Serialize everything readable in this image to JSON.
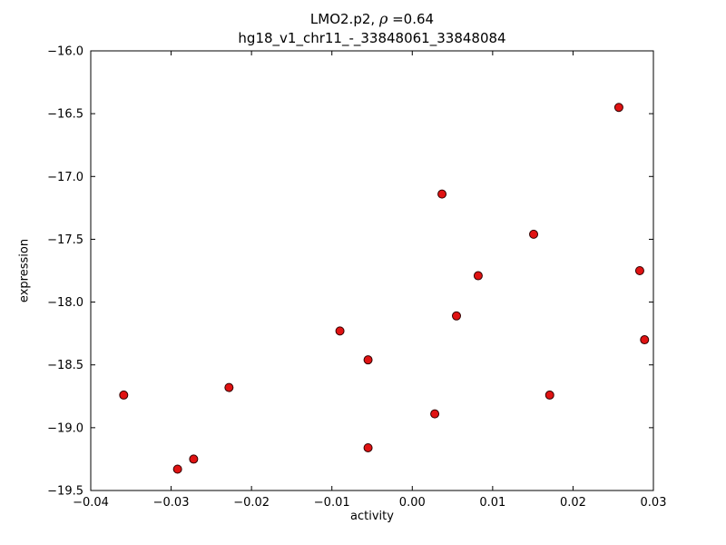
{
  "figure": {
    "title_part1": "LMO2.p2, ",
    "title_rho": "ρ",
    "title_part2": " =0.64",
    "subtitle": "hg18_v1_chr11_-_33848061_33848084",
    "xlabel": "activity",
    "ylabel": "expression"
  },
  "chart_data": {
    "type": "scatter",
    "title": "LMO2.p2, ρ =0.64",
    "subtitle": "hg18_v1_chr11_-_33848061_33848084",
    "xlabel": "activity",
    "ylabel": "expression",
    "xlim": [
      -0.04,
      0.03
    ],
    "ylim": [
      -19.5,
      -16.0
    ],
    "grid": false,
    "legend": "none",
    "xticks": {
      "values": [
        -0.04,
        -0.03,
        -0.02,
        -0.01,
        0.0,
        0.01,
        0.02,
        0.03
      ],
      "labels": [
        "−0.04",
        "−0.03",
        "−0.02",
        "−0.01",
        "0.00",
        "0.01",
        "0.02",
        "0.03"
      ]
    },
    "yticks": {
      "values": [
        -19.5,
        -19.0,
        -18.5,
        -18.0,
        -17.5,
        -17.0,
        -16.5,
        -16.0
      ],
      "labels": [
        "−19.5",
        "−19.0",
        "−18.5",
        "−18.0",
        "−17.5",
        "−17.0",
        "−16.5",
        "−16.0"
      ]
    },
    "points": [
      [
        -0.0359,
        -18.74
      ],
      [
        -0.0292,
        -19.33
      ],
      [
        -0.0272,
        -19.25
      ],
      [
        -0.0228,
        -18.68
      ],
      [
        -0.009,
        -18.23
      ],
      [
        -0.0055,
        -18.46
      ],
      [
        -0.0055,
        -19.16
      ],
      [
        0.0028,
        -18.89
      ],
      [
        0.0037,
        -17.14
      ],
      [
        0.0055,
        -18.11
      ],
      [
        0.0082,
        -17.79
      ],
      [
        0.0151,
        -17.46
      ],
      [
        0.0171,
        -18.74
      ],
      [
        0.0257,
        -16.45
      ],
      [
        0.0283,
        -17.75
      ],
      [
        0.0289,
        -18.3
      ]
    ],
    "marker": {
      "fill": "#e01212",
      "edge": "#300000",
      "radius": 4.5
    },
    "colors": {
      "axis": "#000000",
      "background": "#ffffff"
    }
  }
}
